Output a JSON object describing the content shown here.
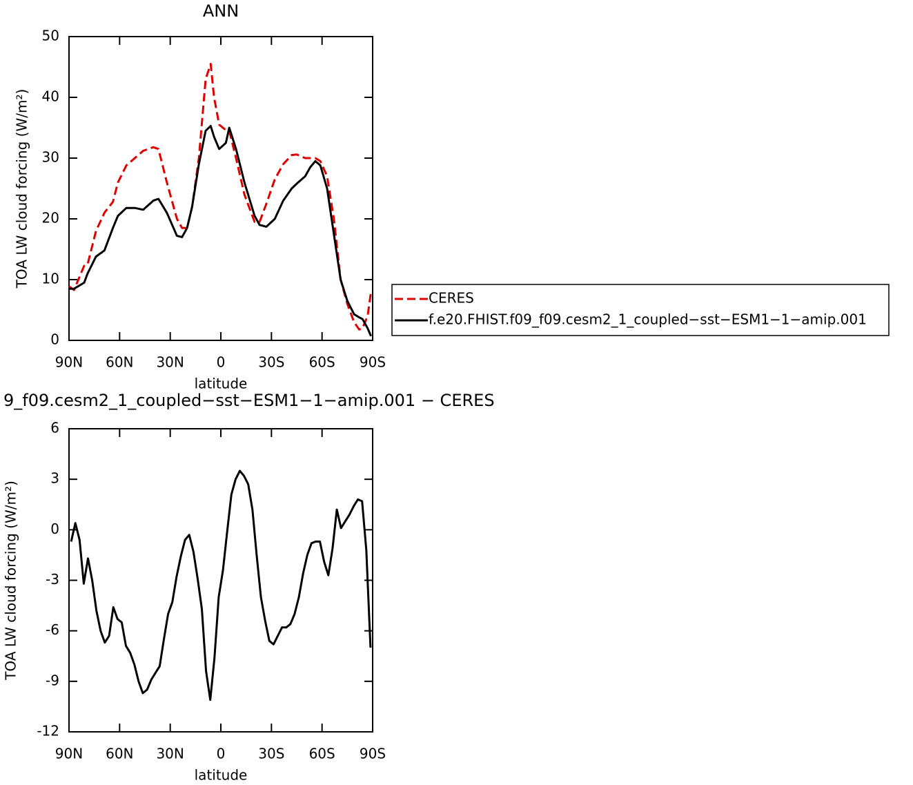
{
  "chart_data": [
    {
      "type": "line",
      "title": "ANN",
      "xlabel": "latitude",
      "ylabel": "TOA LW cloud forcing (W/m²)",
      "x": [
        90,
        87,
        81,
        79,
        74,
        69,
        64,
        61,
        56,
        51,
        46,
        40,
        37,
        32,
        26,
        23,
        20,
        17,
        13,
        9,
        6,
        4,
        1,
        -3,
        -5,
        -9,
        -14,
        -20,
        -23,
        -27,
        -32,
        -37,
        -42,
        -45,
        -50,
        -53,
        -56,
        -59,
        -63,
        -67,
        -71,
        -75,
        -79,
        -82,
        -84,
        -87,
        -89
      ],
      "series": [
        {
          "name": "CERES",
          "color": "#e00000",
          "style": "dashed",
          "values": [
            8.9,
            8.3,
            12.3,
            12.5,
            18,
            21,
            22.8,
            26,
            28.8,
            30,
            31.2,
            31.8,
            31.5,
            26,
            20,
            18.5,
            18.5,
            22,
            30,
            43,
            45.5,
            40,
            35.5,
            34.6,
            34.5,
            30,
            24,
            19.5,
            19.5,
            22.5,
            26.5,
            29,
            30.5,
            30.6,
            30,
            30,
            30,
            29.5,
            27,
            20,
            10,
            6,
            3,
            1.8,
            2,
            4,
            8
          ]
        },
        {
          "name": "f.e20.FHIST.f09_f09.cesm2_1_coupled−sst−ESM1−1−amip.001",
          "color": "#000000",
          "style": "solid",
          "values": [
            8.5,
            8.5,
            9.5,
            11,
            13.8,
            14.8,
            18.5,
            20.5,
            21.8,
            21.8,
            21.5,
            23,
            23.3,
            21,
            17.2,
            17,
            18.5,
            22,
            29,
            34.5,
            35.3,
            33.5,
            31.5,
            32.5,
            35,
            31.5,
            26,
            20.5,
            19,
            18.7,
            20,
            23,
            25,
            25.8,
            27,
            28.5,
            29.5,
            28.8,
            25,
            17.5,
            10,
            6.5,
            4.3,
            3.8,
            3.5,
            2,
            0.7
          ]
        }
      ],
      "xlim": [
        90,
        -90
      ],
      "xticks": [
        {
          "value": 90,
          "label": "90N"
        },
        {
          "value": 60,
          "label": "60N"
        },
        {
          "value": 30,
          "label": "30N"
        },
        0,
        {
          "value": -30,
          "label": "30S"
        },
        {
          "value": -60,
          "label": "60S"
        },
        {
          "value": -90,
          "label": "90S"
        }
      ],
      "ylim": [
        0,
        50
      ],
      "yticks": [
        0,
        10,
        20,
        30,
        40,
        50
      ],
      "legend": "outside-right"
    },
    {
      "type": "line",
      "title": "9_f09.cesm2_1_coupled−sst−ESM1−1−amip.001 − CERES",
      "xlabel": "latitude",
      "ylabel": "TOA LW cloud forcing (W/m²)",
      "x": [
        88.75,
        86.25,
        83.75,
        81.25,
        78.75,
        76.25,
        73.75,
        71.25,
        68.75,
        66.25,
        63.75,
        61.25,
        58.75,
        56.25,
        53.75,
        51.25,
        48.75,
        46.25,
        43.75,
        41.25,
        38.75,
        36.25,
        33.75,
        31.25,
        28.75,
        26.25,
        23.75,
        21.25,
        18.75,
        16.25,
        13.75,
        11.25,
        8.75,
        6.25,
        3.75,
        1.25,
        -1.25,
        -3.75,
        -6.25,
        -8.75,
        -11.25,
        -13.75,
        -16.25,
        -18.75,
        -21.25,
        -23.75,
        -26.25,
        -28.75,
        -31.25,
        -33.75,
        -36.25,
        -38.75,
        -41.25,
        -43.75,
        -46.25,
        -48.75,
        -51.25,
        -53.75,
        -56.25,
        -58.75,
        -61.25,
        -63.75,
        -66.25,
        -68.75,
        -71.25,
        -73.75,
        -76.25,
        -78.75,
        -81.25,
        -83.75,
        -86.25,
        -88.75
      ],
      "series": [
        {
          "color": "#000000",
          "style": "solid",
          "values": [
            -0.7,
            0.4,
            -0.6,
            -3.2,
            -1.7,
            -3,
            -4.8,
            -6,
            -6.7,
            -6.3,
            -4.6,
            -5.3,
            -5.5,
            -6.9,
            -7.3,
            -8,
            -9,
            -9.7,
            -9.5,
            -8.9,
            -8.5,
            -8.1,
            -6.5,
            -5,
            -4.3,
            -2.8,
            -1.6,
            -0.6,
            -0.3,
            -1.3,
            -2.9,
            -4.7,
            -8.4,
            -10.1,
            -7.6,
            -4,
            -2.4,
            -0.1,
            2.1,
            3,
            3.5,
            3.2,
            2.7,
            1.2,
            -1.5,
            -4,
            -5.4,
            -6.6,
            -6.8,
            -6.3,
            -5.8,
            -5.8,
            -5.6,
            -5,
            -4,
            -2.6,
            -1.5,
            -0.8,
            -0.7,
            -0.7,
            -1.9,
            -2.7,
            -1.1,
            1.2,
            0.1,
            0.5,
            0.9,
            1.4,
            1.8,
            1.7,
            -1.2,
            -7
          ]
        }
      ],
      "xlim": [
        90,
        -90
      ],
      "xticks": [
        {
          "value": 90,
          "label": "90N"
        },
        {
          "value": 60,
          "label": "60N"
        },
        {
          "value": 30,
          "label": "30N"
        },
        0,
        {
          "value": -30,
          "label": "30S"
        },
        {
          "value": -60,
          "label": "60S"
        },
        {
          "value": -90,
          "label": "90S"
        }
      ],
      "ylim": [
        -12,
        6
      ],
      "yticks": [
        -12,
        -9,
        -6,
        -3,
        0,
        3,
        6
      ]
    }
  ]
}
